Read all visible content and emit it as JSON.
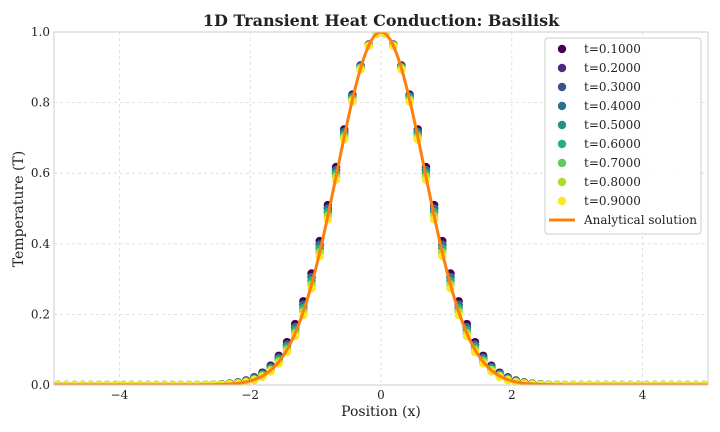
{
  "chart_data": {
    "type": "scatter",
    "title": "1D Transient Heat Conduction: Basilisk",
    "xlabel": "Position (x)",
    "ylabel": "Temperature (T)",
    "xlim": [
      -5,
      5
    ],
    "ylim": [
      0,
      1
    ],
    "x_ticks": [
      -4,
      -2,
      0,
      2,
      4
    ],
    "x_tick_labels": [
      "−4",
      "−2",
      "0",
      "2",
      "4"
    ],
    "y_ticks": [
      0,
      0.2,
      0.4,
      0.6,
      0.8,
      1.0
    ],
    "y_tick_labels": [
      "0.0",
      "0.2",
      "0.4",
      "0.6",
      "0.8",
      "1.0"
    ],
    "grid": true,
    "legend_position": "top-right",
    "profile": "gaussian",
    "point_count": 80,
    "series": [
      {
        "name": "t=0.1000",
        "color": "#440154",
        "sigma": 0.7
      },
      {
        "name": "t=0.2000",
        "color": "#472d7b",
        "sigma": 0.69
      },
      {
        "name": "t=0.3000",
        "color": "#3b528b",
        "sigma": 0.69
      },
      {
        "name": "t=0.4000",
        "color": "#2c728e",
        "sigma": 0.69
      },
      {
        "name": "t=0.5000",
        "color": "#21918c",
        "sigma": 0.68
      },
      {
        "name": "t=0.6000",
        "color": "#28ae80",
        "sigma": 0.68
      },
      {
        "name": "t=0.7000",
        "color": "#5ec962",
        "sigma": 0.67
      },
      {
        "name": "t=0.8000",
        "color": "#addc30",
        "sigma": 0.67
      },
      {
        "name": "t=0.9000",
        "color": "#fde725",
        "sigma": 0.66
      }
    ],
    "analytical": {
      "name": "Analytical solution",
      "color": "#ff7f0e",
      "sigma": 0.67
    }
  }
}
